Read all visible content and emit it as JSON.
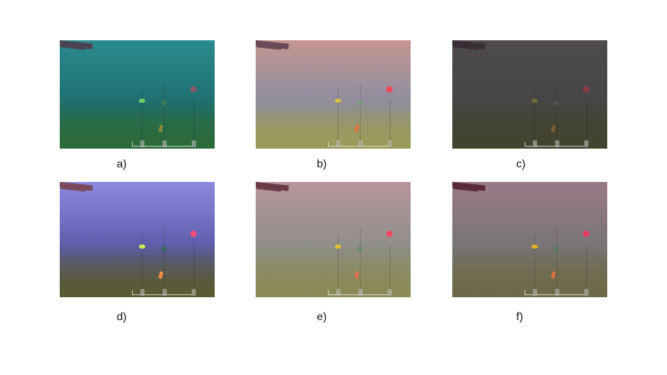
{
  "panels": [
    {
      "label": "a)",
      "top_color": "#2b8a8f",
      "mid_color": "#1f6f6f",
      "floor_color": "#2c6a3a",
      "diver_color": "#4a4350",
      "buoy_colors": [
        "#6cd06a",
        "#3c7a5a",
        "#8a5a68"
      ],
      "block_color": "#8a8a3a"
    },
    {
      "label": "b)",
      "top_color": "#c49590",
      "mid_color": "#8c8ca2",
      "floor_color": "#9a9a58",
      "diver_color": "#6a4a58",
      "buoy_colors": [
        "#d4c040",
        "#7a9a7a",
        "#ee4a5a"
      ],
      "block_color": "#e07040"
    },
    {
      "label": "c)",
      "top_color": "#4e4a4a",
      "mid_color": "#464646",
      "floor_color": "#43442f",
      "diver_color": "#3a2f36",
      "buoy_colors": [
        "#6e6a30",
        "#4a5550",
        "#8a3a40"
      ],
      "block_color": "#7a5a30"
    },
    {
      "label": "d)",
      "top_color": "#8c8ae0",
      "mid_color": "#5a5aa8",
      "floor_color": "#5a5a32",
      "diver_color": "#7a4a5a",
      "buoy_colors": [
        "#d0f050",
        "#3a6a5a",
        "#f0507a"
      ],
      "block_color": "#f09040"
    },
    {
      "label": "e)",
      "top_color": "#b8949a",
      "mid_color": "#8c8e8a",
      "floor_color": "#8a8a58",
      "diver_color": "#6a3a48",
      "buoy_colors": [
        "#e0c030",
        "#6a8a6a",
        "#f04a60"
      ],
      "block_color": "#e07050"
    },
    {
      "label": "f)",
      "top_color": "#9a7a88",
      "mid_color": "#767476",
      "floor_color": "#6e6a48",
      "diver_color": "#5a2a3a",
      "buoy_colors": [
        "#e0b020",
        "#5a7a60",
        "#e83a60"
      ],
      "block_color": "#e07040"
    }
  ]
}
